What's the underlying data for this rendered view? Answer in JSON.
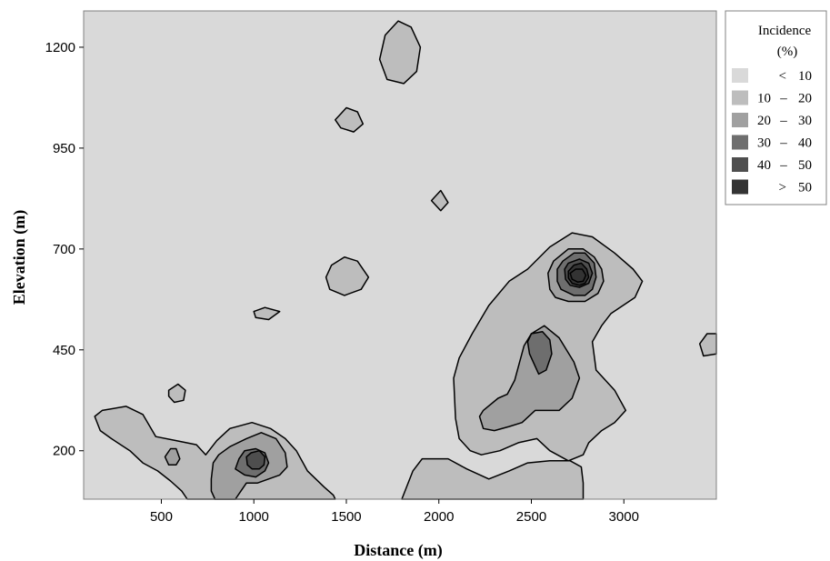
{
  "chart_data": {
    "type": "contour",
    "xlabel": "Distance (m)",
    "ylabel": "Elevation (m)",
    "xlim": [
      80,
      3500
    ],
    "ylim": [
      80,
      1290
    ],
    "x_ticks": [
      500,
      1000,
      1500,
      2000,
      2500,
      3000
    ],
    "y_ticks": [
      200,
      450,
      700,
      950,
      1200
    ],
    "legend": {
      "title_line1": "Incidence",
      "title_line2": "(%)",
      "position": "right",
      "levels": [
        {
          "symbol": "<",
          "range": "10",
          "color": "#d9d9d9"
        },
        {
          "symbol": "10",
          "dash": "–",
          "range": "20",
          "color": "#bdbdbd"
        },
        {
          "symbol": "20",
          "dash": "–",
          "range": "30",
          "color": "#a0a0a0"
        },
        {
          "symbol": "30",
          "dash": "–",
          "range": "40",
          "color": "#6e6e6e"
        },
        {
          "symbol": "40",
          "dash": "–",
          "range": "50",
          "color": "#4e4e4e"
        },
        {
          "symbol": ">",
          "range": "50",
          "color": "#333333"
        }
      ]
    },
    "regions": [
      {
        "level": 1,
        "points": [
          [
            1680,
            1170
          ],
          [
            1710,
            1230
          ],
          [
            1780,
            1265
          ],
          [
            1850,
            1250
          ],
          [
            1900,
            1200
          ],
          [
            1880,
            1140
          ],
          [
            1810,
            1110
          ],
          [
            1720,
            1120
          ]
        ]
      },
      {
        "level": 1,
        "points": [
          [
            1440,
            1020
          ],
          [
            1500,
            1050
          ],
          [
            1560,
            1040
          ],
          [
            1590,
            1010
          ],
          [
            1540,
            990
          ],
          [
            1470,
            1000
          ]
        ]
      },
      {
        "level": 1,
        "points": [
          [
            1960,
            820
          ],
          [
            2010,
            845
          ],
          [
            2050,
            815
          ],
          [
            2010,
            795
          ]
        ]
      },
      {
        "level": 1,
        "points": [
          [
            1390,
            630
          ],
          [
            1420,
            660
          ],
          [
            1490,
            680
          ],
          [
            1560,
            670
          ],
          [
            1620,
            630
          ],
          [
            1580,
            600
          ],
          [
            1490,
            585
          ],
          [
            1410,
            600
          ]
        ]
      },
      {
        "level": 1,
        "points": [
          [
            1000,
            545
          ],
          [
            1060,
            555
          ],
          [
            1140,
            545
          ],
          [
            1080,
            525
          ],
          [
            1010,
            530
          ]
        ]
      },
      {
        "level": 1,
        "points": [
          [
            540,
            350
          ],
          [
            590,
            365
          ],
          [
            630,
            350
          ],
          [
            620,
            325
          ],
          [
            570,
            320
          ],
          [
            540,
            335
          ]
        ]
      },
      {
        "level": 1,
        "points": [
          [
            3410,
            465
          ],
          [
            3450,
            490
          ],
          [
            3500,
            490
          ],
          [
            3500,
            440
          ],
          [
            3430,
            435
          ]
        ]
      },
      {
        "level": 1,
        "points": [
          [
            140,
            285
          ],
          [
            180,
            300
          ],
          [
            310,
            310
          ],
          [
            400,
            290
          ],
          [
            470,
            235
          ],
          [
            580,
            225
          ],
          [
            690,
            215
          ],
          [
            740,
            190
          ],
          [
            800,
            225
          ],
          [
            870,
            255
          ],
          [
            990,
            270
          ],
          [
            1090,
            255
          ],
          [
            1170,
            230
          ],
          [
            1230,
            200
          ],
          [
            1290,
            150
          ],
          [
            1380,
            110
          ],
          [
            1430,
            90
          ],
          [
            1440,
            80
          ],
          [
            640,
            80
          ],
          [
            610,
            100
          ],
          [
            550,
            125
          ],
          [
            480,
            150
          ],
          [
            400,
            170
          ],
          [
            330,
            200
          ],
          [
            230,
            230
          ],
          [
            170,
            250
          ]
        ]
      },
      {
        "level": 1,
        "points": [
          [
            1800,
            80
          ],
          [
            1860,
            150
          ],
          [
            1910,
            180
          ],
          [
            2050,
            180
          ],
          [
            2150,
            155
          ],
          [
            2270,
            130
          ],
          [
            2380,
            150
          ],
          [
            2480,
            170
          ],
          [
            2600,
            175
          ],
          [
            2710,
            175
          ],
          [
            2770,
            160
          ],
          [
            2780,
            120
          ],
          [
            2780,
            80
          ]
        ]
      },
      {
        "level": 1,
        "points": [
          [
            2080,
            380
          ],
          [
            2110,
            430
          ],
          [
            2180,
            490
          ],
          [
            2270,
            560
          ],
          [
            2380,
            620
          ],
          [
            2480,
            650
          ],
          [
            2600,
            705
          ],
          [
            2720,
            740
          ],
          [
            2830,
            730
          ],
          [
            2950,
            690
          ],
          [
            3050,
            650
          ],
          [
            3100,
            620
          ],
          [
            3060,
            580
          ],
          [
            2930,
            540
          ],
          [
            2880,
            510
          ],
          [
            2830,
            470
          ],
          [
            2850,
            400
          ],
          [
            2950,
            350
          ],
          [
            3010,
            300
          ],
          [
            2950,
            270
          ],
          [
            2880,
            250
          ],
          [
            2810,
            220
          ],
          [
            2780,
            190
          ],
          [
            2700,
            175
          ],
          [
            2600,
            200
          ],
          [
            2530,
            230
          ],
          [
            2430,
            220
          ],
          [
            2330,
            200
          ],
          [
            2230,
            190
          ],
          [
            2170,
            200
          ],
          [
            2110,
            230
          ],
          [
            2090,
            280
          ]
        ]
      },
      {
        "level": 2,
        "points": [
          [
            770,
            130
          ],
          [
            780,
            170
          ],
          [
            810,
            190
          ],
          [
            870,
            210
          ],
          [
            960,
            230
          ],
          [
            1040,
            245
          ],
          [
            1120,
            230
          ],
          [
            1170,
            195
          ],
          [
            1180,
            160
          ],
          [
            1140,
            140
          ],
          [
            1080,
            130
          ],
          [
            1020,
            120
          ],
          [
            960,
            120
          ],
          [
            930,
            100
          ],
          [
            900,
            80
          ],
          [
            790,
            80
          ],
          [
            770,
            100
          ]
        ]
      },
      {
        "level": 2,
        "points": [
          [
            520,
            185
          ],
          [
            550,
            205
          ],
          [
            580,
            205
          ],
          [
            600,
            180
          ],
          [
            580,
            165
          ],
          [
            540,
            165
          ]
        ]
      },
      {
        "level": 2,
        "points": [
          [
            2220,
            285
          ],
          [
            2240,
            300
          ],
          [
            2320,
            330
          ],
          [
            2370,
            340
          ],
          [
            2410,
            375
          ],
          [
            2460,
            460
          ],
          [
            2500,
            490
          ],
          [
            2570,
            510
          ],
          [
            2650,
            480
          ],
          [
            2730,
            420
          ],
          [
            2760,
            380
          ],
          [
            2720,
            330
          ],
          [
            2650,
            300
          ],
          [
            2560,
            300
          ],
          [
            2520,
            300
          ],
          [
            2450,
            270
          ],
          [
            2380,
            260
          ],
          [
            2300,
            250
          ],
          [
            2240,
            255
          ]
        ]
      },
      {
        "level": 2,
        "points": [
          [
            2590,
            640
          ],
          [
            2620,
            670
          ],
          [
            2700,
            700
          ],
          [
            2780,
            700
          ],
          [
            2840,
            680
          ],
          [
            2880,
            650
          ],
          [
            2890,
            620
          ],
          [
            2860,
            590
          ],
          [
            2790,
            570
          ],
          [
            2700,
            570
          ],
          [
            2630,
            580
          ],
          [
            2600,
            600
          ]
        ]
      },
      {
        "level": 3,
        "points": [
          [
            900,
            155
          ],
          [
            920,
            180
          ],
          [
            950,
            200
          ],
          [
            1010,
            205
          ],
          [
            1060,
            195
          ],
          [
            1080,
            170
          ],
          [
            1060,
            150
          ],
          [
            1010,
            135
          ],
          [
            950,
            140
          ]
        ]
      },
      {
        "level": 3,
        "points": [
          [
            2480,
            470
          ],
          [
            2500,
            490
          ],
          [
            2560,
            495
          ],
          [
            2600,
            475
          ],
          [
            2610,
            440
          ],
          [
            2580,
            400
          ],
          [
            2540,
            390
          ],
          [
            2510,
            420
          ],
          [
            2490,
            440
          ]
        ]
      },
      {
        "level": 3,
        "points": [
          [
            2640,
            650
          ],
          [
            2670,
            670
          ],
          [
            2730,
            690
          ],
          [
            2790,
            690
          ],
          [
            2840,
            665
          ],
          [
            2850,
            630
          ],
          [
            2830,
            600
          ],
          [
            2790,
            585
          ],
          [
            2730,
            585
          ],
          [
            2660,
            600
          ],
          [
            2640,
            620
          ]
        ]
      },
      {
        "level": 4,
        "points": [
          [
            960,
            185
          ],
          [
            985,
            195
          ],
          [
            1030,
            200
          ],
          [
            1060,
            185
          ],
          [
            1055,
            165
          ],
          [
            1030,
            155
          ],
          [
            990,
            155
          ],
          [
            965,
            165
          ]
        ]
      },
      {
        "level": 4,
        "points": [
          [
            2680,
            650
          ],
          [
            2700,
            665
          ],
          [
            2760,
            675
          ],
          [
            2810,
            665
          ],
          [
            2830,
            640
          ],
          [
            2810,
            615
          ],
          [
            2760,
            605
          ],
          [
            2710,
            610
          ],
          [
            2685,
            625
          ]
        ]
      },
      {
        "level": 5,
        "points": [
          [
            2700,
            645
          ],
          [
            2730,
            660
          ],
          [
            2770,
            665
          ],
          [
            2800,
            650
          ],
          [
            2810,
            630
          ],
          [
            2790,
            615
          ],
          [
            2760,
            610
          ],
          [
            2720,
            615
          ],
          [
            2700,
            628
          ]
        ]
      },
      {
        "level": 5,
        "points": [
          [
            2710,
            640
          ],
          [
            2740,
            650
          ],
          [
            2775,
            650
          ],
          [
            2795,
            635
          ],
          [
            2780,
            620
          ],
          [
            2750,
            618
          ],
          [
            2720,
            625
          ]
        ]
      }
    ]
  }
}
